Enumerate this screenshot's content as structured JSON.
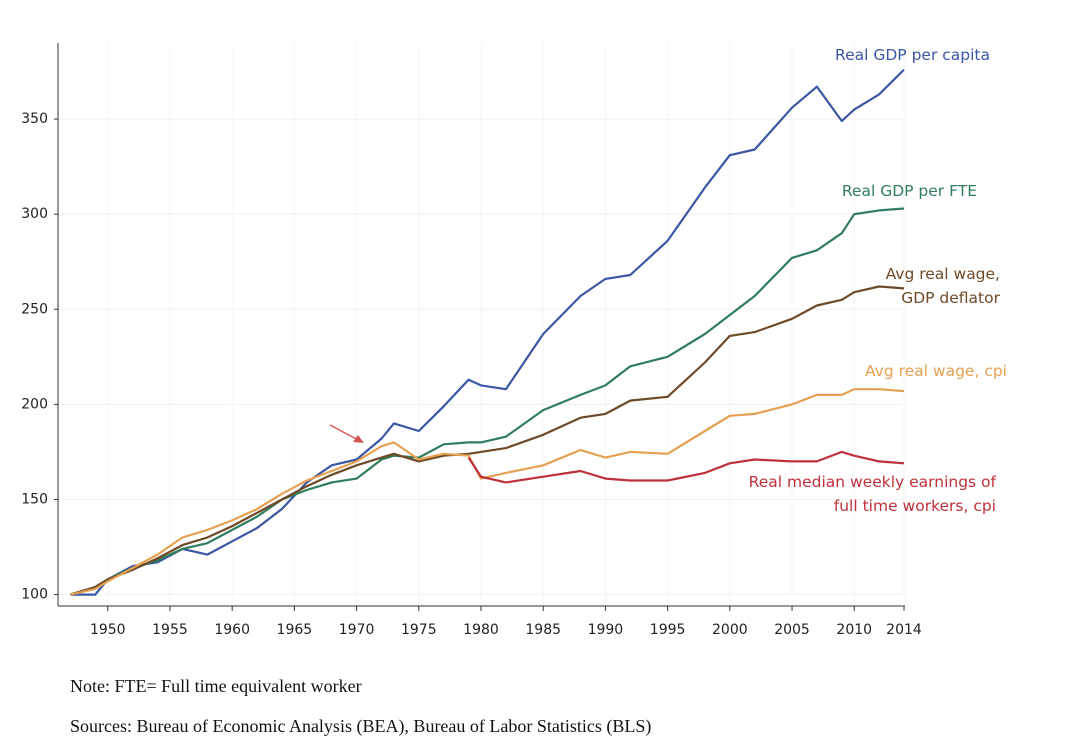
{
  "chart_data": {
    "type": "line",
    "x": [
      1947,
      1949,
      1950,
      1952,
      1954,
      1956,
      1958,
      1960,
      1962,
      1964,
      1966,
      1968,
      1970,
      1972,
      1973,
      1975,
      1977,
      1979,
      1980,
      1982,
      1985,
      1988,
      1990,
      1992,
      1995,
      1998,
      2000,
      2002,
      2005,
      2007,
      2009,
      2010,
      2012,
      2014
    ],
    "series": [
      {
        "name": "Real GDP per capita",
        "color": "#3b56a3",
        "values": [
          100,
          100,
          108,
          115,
          117,
          124,
          121,
          128,
          135,
          145,
          159,
          168,
          171,
          182,
          190,
          186,
          199,
          213,
          210,
          208,
          237,
          257,
          266,
          268,
          286,
          314,
          331,
          334,
          356,
          367,
          349,
          355,
          363,
          376
        ]
      },
      {
        "name": "Real GDP per FTE",
        "color": "#2f7d5b",
        "values": [
          100,
          104,
          108,
          114,
          118,
          124,
          127,
          134,
          141,
          150,
          155,
          159,
          161,
          171,
          173,
          172,
          179,
          180,
          180,
          183,
          197,
          205,
          210,
          220,
          225,
          237,
          247,
          257,
          277,
          281,
          290,
          300,
          302,
          303
        ]
      },
      {
        "name": "Avg real wage, GDP deflator",
        "color": "#6e4a28",
        "values": [
          100,
          104,
          108,
          113,
          119,
          126,
          130,
          136,
          143,
          150,
          157,
          163,
          168,
          172,
          174,
          170,
          173,
          174,
          175,
          177,
          184,
          193,
          195,
          202,
          204,
          222,
          236,
          238,
          245,
          252,
          255,
          259,
          262,
          261
        ]
      },
      {
        "name": "Avg real wage, cpi",
        "color": "#e5a052",
        "values": [
          100,
          103,
          107,
          114,
          121,
          130,
          134,
          139,
          145,
          153,
          160,
          165,
          170,
          178,
          180,
          171,
          174,
          173,
          161,
          164,
          168,
          176,
          172,
          175,
          174,
          186,
          194,
          195,
          200,
          205,
          205,
          208,
          208,
          207
        ]
      },
      {
        "name": "Real median weekly earnings of full time workers, cpi",
        "color": "#c0303a",
        "values": [
          null,
          null,
          null,
          null,
          null,
          null,
          null,
          null,
          null,
          null,
          null,
          null,
          null,
          null,
          null,
          null,
          null,
          172,
          162,
          159,
          162,
          165,
          161,
          160,
          160,
          164,
          169,
          171,
          170,
          170,
          175,
          173,
          170,
          169
        ]
      }
    ],
    "xlim": [
      1946,
      2014
    ],
    "xticks": [
      1950,
      1955,
      1960,
      1965,
      1970,
      1975,
      1980,
      1985,
      1990,
      1995,
      2000,
      2005,
      2010,
      2014
    ],
    "ylim": [
      94,
      390
    ],
    "yticks": [
      100,
      150,
      200,
      250,
      300,
      350
    ],
    "grid": true,
    "notes": [
      "Note: FTE= Full time equivalent worker",
      "Sources: Bureau of Economic Analysis (BEA), Bureau of Labor Statistics (BLS)"
    ]
  }
}
